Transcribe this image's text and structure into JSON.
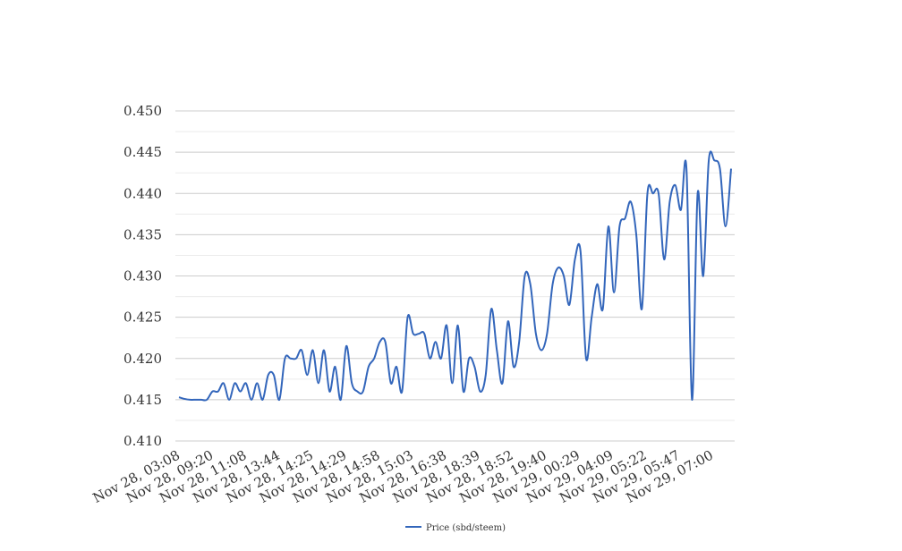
{
  "chart_data": {
    "type": "line",
    "title": "",
    "xlabel": "",
    "ylabel": "",
    "ylim": [
      0.41,
      0.45
    ],
    "y_ticks": [
      "0.410",
      "0.415",
      "0.420",
      "0.425",
      "0.430",
      "0.435",
      "0.440",
      "0.445",
      "0.450"
    ],
    "x_tick_labels": [
      "Nov 28, 03:08",
      "Nov 28, 09:20",
      "Nov 28, 11:08",
      "Nov 28, 13:44",
      "Nov 28, 14:25",
      "Nov 28, 14:29",
      "Nov 28, 14:58",
      "Nov 28, 15:03",
      "Nov 28, 16:38",
      "Nov 28, 18:39",
      "Nov 28, 18:52",
      "Nov 28, 19:40",
      "Nov 29, 00:29",
      "Nov 29, 04:09",
      "Nov 29, 05:22",
      "Nov 29, 05:47",
      "Nov 29, 07:00"
    ],
    "grid": true,
    "legend_position": "bottom",
    "series": [
      {
        "name": "Price (sbd/steem)",
        "color": "#3366bb",
        "values": [
          0.4153,
          0.4151,
          0.415,
          0.415,
          0.415,
          0.415,
          0.416,
          0.416,
          0.417,
          0.415,
          0.417,
          0.416,
          0.417,
          0.415,
          0.417,
          0.415,
          0.418,
          0.418,
          0.415,
          0.42,
          0.42,
          0.42,
          0.421,
          0.418,
          0.421,
          0.417,
          0.421,
          0.416,
          0.419,
          0.415,
          0.4215,
          0.417,
          0.416,
          0.416,
          0.419,
          0.42,
          0.422,
          0.422,
          0.417,
          0.419,
          0.416,
          0.425,
          0.423,
          0.423,
          0.423,
          0.42,
          0.422,
          0.42,
          0.424,
          0.417,
          0.424,
          0.416,
          0.42,
          0.419,
          0.416,
          0.418,
          0.426,
          0.421,
          0.417,
          0.4245,
          0.419,
          0.422,
          0.43,
          0.429,
          0.423,
          0.421,
          0.423,
          0.429,
          0.431,
          0.43,
          0.4265,
          0.432,
          0.433,
          0.42,
          0.425,
          0.429,
          0.426,
          0.436,
          0.428,
          0.436,
          0.437,
          0.439,
          0.435,
          0.426,
          0.44,
          0.44,
          0.44,
          0.432,
          0.439,
          0.441,
          0.438,
          0.443,
          0.415,
          0.44,
          0.43,
          0.444,
          0.444,
          0.443,
          0.436,
          0.443
        ]
      }
    ]
  }
}
